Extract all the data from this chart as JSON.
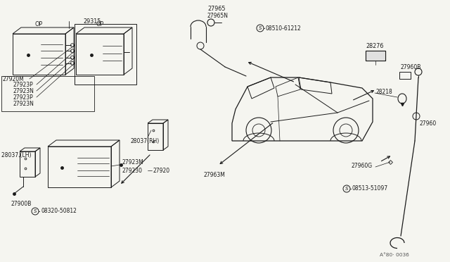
{
  "bg_color": "#f5f5f0",
  "dc": "#1a1a1a",
  "lc": "#1a1a1a",
  "fs": 5.8,
  "parts": {
    "op1": "OP",
    "op2": "OP",
    "p29315": "29315",
    "p27965": "27965",
    "p27965N": "27965N",
    "p27920M": "27920M",
    "p27923P_1": "27923P",
    "p27923N_1": "27923N",
    "p27923P_2": "27923P",
    "p27923N_2": "27923N",
    "p28037RH": "28037(RH)",
    "p28037LH": "28037 (LH)",
    "p27920": "27920",
    "p27923M": "27923M",
    "p27923D": "279230",
    "p27963M": "27963M",
    "p28276": "28276",
    "p27960B": "27960B",
    "p28218": "28218",
    "p27960": "27960",
    "p27960G": "27960G",
    "p08510": "08510-61212",
    "p08513": "08513-51097",
    "p08320": "08320-50812",
    "p27900B": "27900B",
    "diagram_code": "A°80· 0036"
  }
}
